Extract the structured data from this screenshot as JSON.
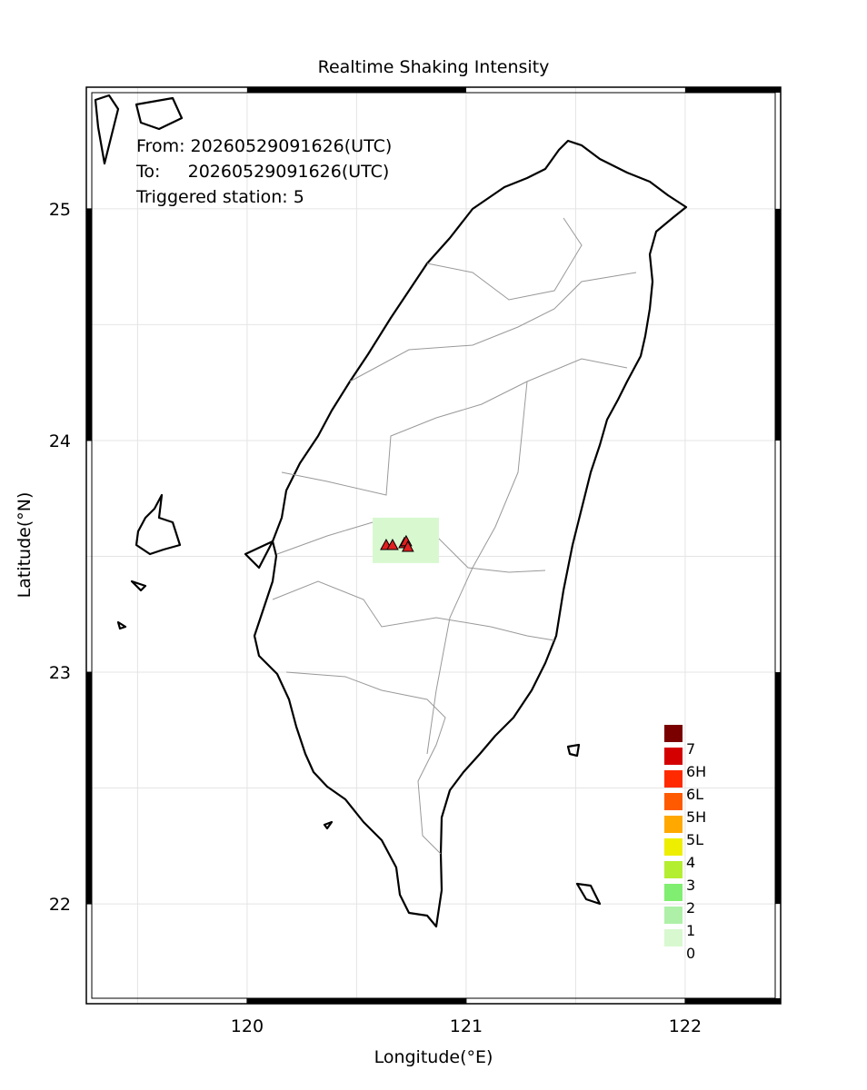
{
  "chart_data": {
    "type": "map",
    "title": "Realtime Shaking Intensity",
    "xlabel": "Longitude(°E)",
    "ylabel": "Latitude(°N)",
    "info": [
      "From: 20260529091626(UTC)",
      "To:     20260529091626(UTC)",
      "Triggered station: 5"
    ],
    "xlim": [
      119.266,
      122.436
    ],
    "ylim": [
      21.569,
      25.525
    ],
    "xticks": [
      120,
      121,
      122
    ],
    "yticks": [
      22,
      23,
      24,
      25
    ],
    "xgrid": [
      119.5,
      120,
      120.5,
      121,
      121.5,
      122
    ],
    "ygrid": [
      22,
      22.5,
      23,
      23.5,
      24,
      24.5,
      25
    ],
    "grid": true,
    "legend": {
      "labels": [
        "7",
        "6H",
        "6L",
        "5H",
        "5L",
        "4",
        "3",
        "2",
        "1",
        "0"
      ],
      "colors": [
        "#7a0000",
        "#d40000",
        "#ff2a00",
        "#ff5a00",
        "#ffa800",
        "#eeee00",
        "#b4ee30",
        "#80ee70",
        "#aef0a8",
        "#d8f8d0"
      ]
    },
    "shaded_area": {
      "lon": [
        120.573,
        120.876
      ],
      "lat": [
        23.471,
        23.667
      ],
      "color": "#d8f8d0"
    },
    "stations": {
      "lon": [
        120.635,
        120.664,
        120.718,
        120.726,
        120.734
      ],
      "lat": [
        23.549,
        23.549,
        23.557,
        23.565,
        23.541
      ],
      "color": "#e02020"
    }
  }
}
